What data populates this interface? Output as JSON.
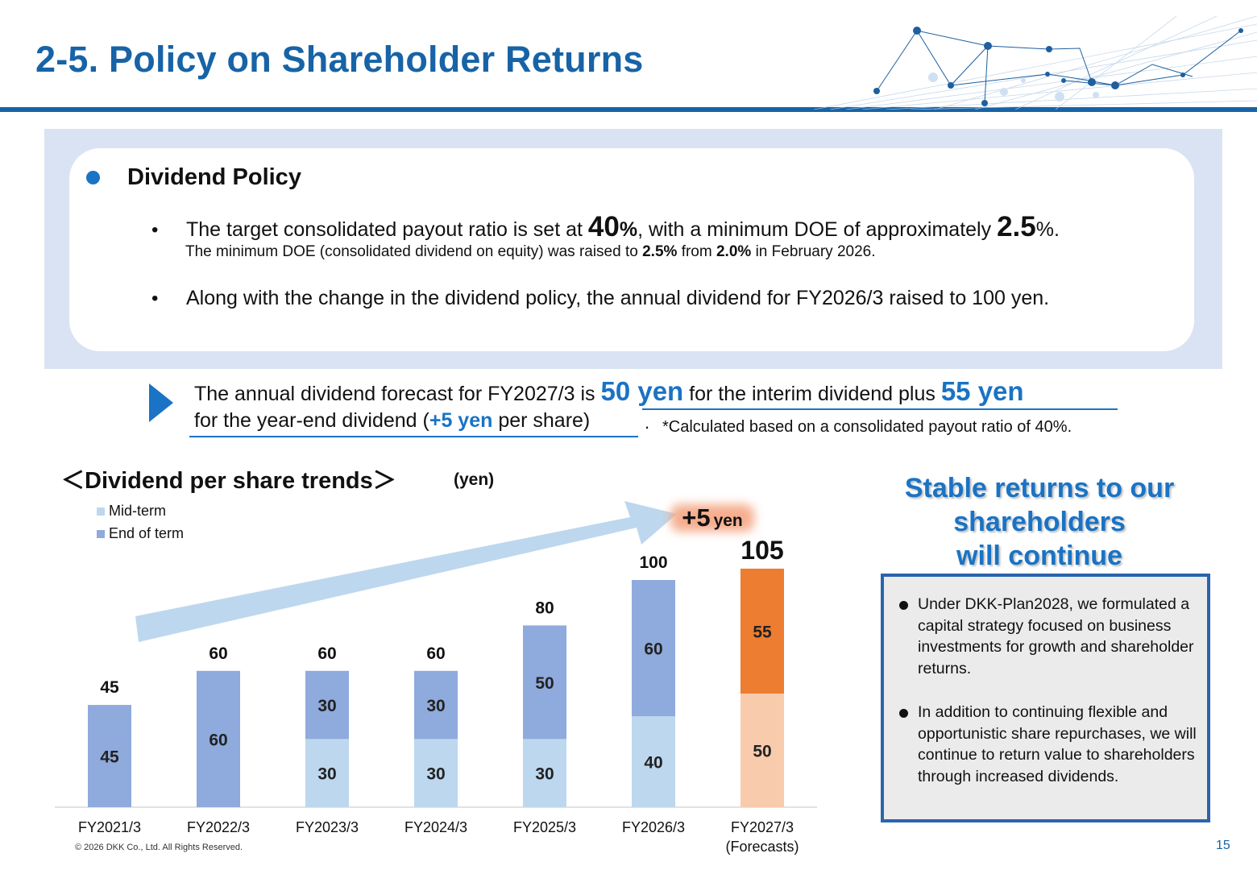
{
  "header": {
    "title": "2-5. Policy on Shareholder Returns"
  },
  "policy": {
    "heading": "Dividend Policy",
    "bullet_mark": "•",
    "bullet1": {
      "text_a": "The target consolidated payout ratio is set at ",
      "payout_num": "40",
      "payout_pct": "%",
      "text_b": ", with a minimum DOE of approximately ",
      "doe_num": "2.5",
      "doe_pct": "%."
    },
    "sub1": {
      "text_a": "The minimum DOE (consolidated dividend on equity) was raised to ",
      "new_doe": "2.5%",
      "text_b": " from ",
      "old_doe": "2.0%",
      "text_c": " in February 2026."
    },
    "bullet2": "Along with the change in the dividend policy, the annual dividend for FY2026/3 raised to 100 yen."
  },
  "forecast": {
    "line1_a": "The annual dividend forecast for FY2027/3 is ",
    "interim": "50 yen",
    "line1_b": " for the interim dividend plus ",
    "yearend": "55 yen",
    "line2_a": "for the year-end dividend (",
    "increase": "+5 yen",
    "line2_b": " per share)",
    "dot": ".",
    "note": "*Calculated based on a consolidated payout ratio of 40%."
  },
  "chart_data": {
    "type": "bar",
    "stacked": true,
    "title": "＜Dividend per share trends＞",
    "unit": "(yen)",
    "categories": [
      "FY2021/3",
      "FY2022/3",
      "FY2023/3",
      "FY2024/3",
      "FY2025/3",
      "FY2026/3",
      "FY2027/3"
    ],
    "category_sublabels": [
      "",
      "",
      "",
      "",
      "",
      "",
      "(Forecasts)"
    ],
    "series": [
      {
        "name": "Mid-term",
        "values": [
          0,
          0,
          30,
          30,
          30,
          40,
          50
        ],
        "color": "#bdd7ee",
        "forecast_color": "#f8cbad"
      },
      {
        "name": "End of term",
        "values": [
          45,
          60,
          30,
          30,
          50,
          60,
          55
        ],
        "color": "#8faadc",
        "forecast_color": "#ed7d31"
      }
    ],
    "totals": [
      45,
      60,
      60,
      60,
      80,
      100,
      105
    ],
    "ylim": [
      0,
      110
    ],
    "legend_position": "top-left",
    "annotation": {
      "value": "+5",
      "unit": "yen"
    }
  },
  "side": {
    "headline": [
      "Stable returns to our",
      "shareholders",
      "will continue"
    ],
    "items": [
      "Under DKK-Plan2028, we formulated a capital strategy focused on business investments for growth and shareholder returns.",
      "In addition to continuing flexible and opportunistic share repurchases, we will continue to return value to shareholders through increased dividends."
    ]
  },
  "footer": {
    "copyright": "© 2026 DKK Co., Ltd. All Rights Reserved.",
    "page": "15"
  }
}
